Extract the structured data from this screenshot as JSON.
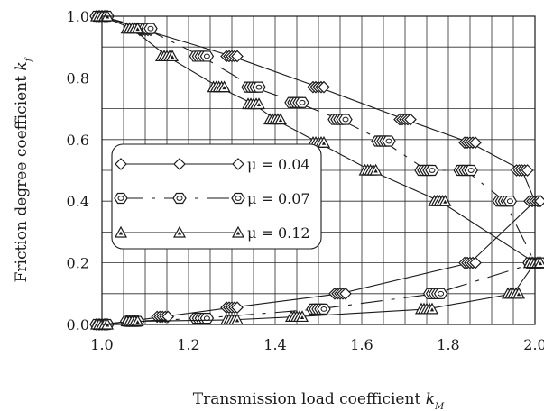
{
  "chart_data": {
    "type": "line",
    "title": "",
    "xlabel": "Transmission load coefficient",
    "xlabel_symbol": "k",
    "xlabel_sub": "M",
    "ylabel": "Friction degree coefficient",
    "ylabel_symbol": "k",
    "ylabel_sub": "f",
    "xlim": [
      1.0,
      2.0
    ],
    "ylim": [
      0.0,
      1.0
    ],
    "xticks": [
      1.0,
      1.2,
      1.4,
      1.6,
      1.8,
      2.0
    ],
    "yticks": [
      0.0,
      0.2,
      0.4,
      0.6,
      0.8,
      1.0
    ],
    "xtick_labels": [
      "1.0",
      "1.2",
      "1.4",
      "1.6",
      "1.8",
      "2.0"
    ],
    "ytick_labels": [
      "0.0",
      "0.2",
      "0.4",
      "0.6",
      "0.8",
      "1.0"
    ],
    "grid": true,
    "legend_position": "center-left",
    "series": [
      {
        "name": "μ = 0.04",
        "marker": "diamond",
        "line_style": "solid",
        "upper": {
          "x": [
            1.0,
            1.1,
            1.3,
            1.5,
            1.7,
            1.85,
            1.97,
            2.0
          ],
          "y": [
            1.0,
            0.955,
            0.87,
            0.77,
            0.665,
            0.59,
            0.5,
            0.4
          ]
        },
        "lower": {
          "x": [
            1.0,
            1.07,
            1.14,
            1.3,
            1.55,
            1.85,
            2.0
          ],
          "y": [
            0.0,
            0.012,
            0.025,
            0.055,
            0.1,
            0.2,
            0.4
          ]
        }
      },
      {
        "name": "μ = 0.07",
        "marker": "hexagon",
        "line_style": "dashed",
        "upper": {
          "x": [
            1.0,
            1.1,
            1.23,
            1.35,
            1.45,
            1.55,
            1.65,
            1.75,
            1.84,
            1.93,
            2.0
          ],
          "y": [
            1.0,
            0.96,
            0.87,
            0.77,
            0.72,
            0.665,
            0.595,
            0.5,
            0.5,
            0.4,
            0.2
          ]
        },
        "lower": {
          "x": [
            1.0,
            1.07,
            1.23,
            1.5,
            1.77,
            2.0
          ],
          "y": [
            0.0,
            0.01,
            0.02,
            0.05,
            0.1,
            0.2
          ]
        }
      },
      {
        "name": "μ = 0.12",
        "marker": "triangle",
        "line_style": "solid",
        "upper": {
          "x": [
            1.0,
            1.07,
            1.15,
            1.27,
            1.35,
            1.4,
            1.5,
            1.62,
            1.78,
            2.0
          ],
          "y": [
            1.0,
            0.96,
            0.87,
            0.77,
            0.715,
            0.665,
            0.59,
            0.5,
            0.4,
            0.2
          ]
        },
        "lower": {
          "x": [
            1.0,
            1.07,
            1.3,
            1.45,
            1.75,
            1.95,
            2.0
          ],
          "y": [
            0.0,
            0.01,
            0.015,
            0.025,
            0.05,
            0.1,
            0.2
          ]
        }
      }
    ]
  }
}
